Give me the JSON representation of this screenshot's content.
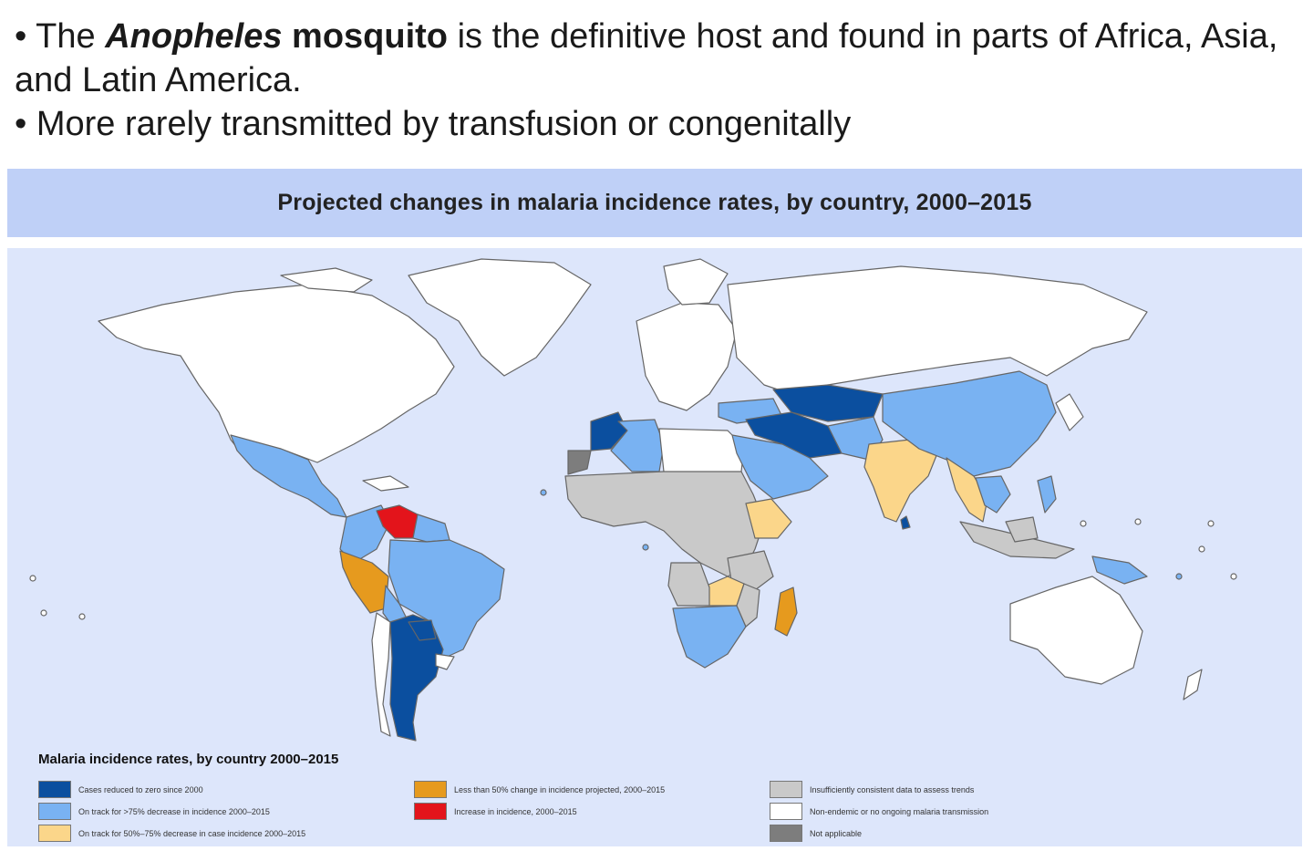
{
  "bullets": {
    "line1": {
      "prefix": "• The ",
      "italic_bold": "Anopheles",
      "bold": " mosquito",
      "rest": " is the definitive host and found  in parts of Africa, Asia, and Latin America."
    },
    "line2": "• More rarely transmitted by transfusion or congenitally"
  },
  "map": {
    "title": "Projected changes in malaria incidence rates, by country, 2000–2015",
    "legend": {
      "title": "Malaria incidence rates, by country 2000–2015",
      "items": [
        {
          "label": "Cases reduced to zero since 2000",
          "color": "#0b4f9f"
        },
        {
          "label": "On track for >75% decrease in incidence 2000–2015",
          "color": "#79b2f2"
        },
        {
          "label": "On track for 50%–75% decrease in case incidence 2000–2015",
          "color": "#fbd68a"
        },
        {
          "label": "Less than 50% change in incidence projected, 2000–2015",
          "color": "#e69a1e"
        },
        {
          "label": "Increase in incidence, 2000–2015",
          "color": "#e3141b"
        },
        {
          "label": "Insufficiently consistent data to assess trends",
          "color": "#c9c9c9"
        },
        {
          "label": "Non-endemic or no ongoing malaria transmission",
          "color": "#ffffff"
        },
        {
          "label": "Not applicable",
          "color": "#7d7d7d"
        }
      ]
    },
    "colors": {
      "ocean": "#dde6fb",
      "banner": "#bfd0f7",
      "border": "#666666"
    }
  }
}
